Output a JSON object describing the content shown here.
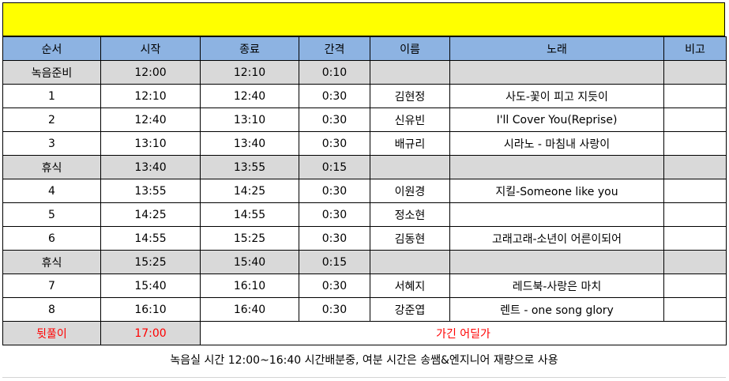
{
  "headers": [
    "순서",
    "시작",
    "종료",
    "간격",
    "이름",
    "노래",
    "비고"
  ],
  "rows": [
    {
      "type": "gray",
      "order": "녹음준비",
      "start": "12:00",
      "end": "12:10",
      "gap": "0:10",
      "name": "",
      "song": "",
      "note": ""
    },
    {
      "type": "normal",
      "order": "1",
      "start": "12:10",
      "end": "12:40",
      "gap": "0:30",
      "name": "김현정",
      "song": "사도-꽃이 피고 지듯이",
      "note": ""
    },
    {
      "type": "normal",
      "order": "2",
      "start": "12:40",
      "end": "13:10",
      "gap": "0:30",
      "name": "신유빈",
      "song": "I'll Cover You(Reprise)",
      "note": ""
    },
    {
      "type": "normal",
      "order": "3",
      "start": "13:10",
      "end": "13:40",
      "gap": "0:30",
      "name": "배규리",
      "song": "시라노 - 마침내 사랑이",
      "note": ""
    },
    {
      "type": "gray",
      "order": "휴식",
      "start": "13:40",
      "end": "13:55",
      "gap": "0:15",
      "name": "",
      "song": "",
      "note": ""
    },
    {
      "type": "normal",
      "order": "4",
      "start": "13:55",
      "end": "14:25",
      "gap": "0:30",
      "name": "이원경",
      "song": "지킬-Someone like you",
      "note": ""
    },
    {
      "type": "normal",
      "order": "5",
      "start": "14:25",
      "end": "14:55",
      "gap": "0:30",
      "name": "정소현",
      "song": "",
      "note": ""
    },
    {
      "type": "normal",
      "order": "6",
      "start": "14:55",
      "end": "15:25",
      "gap": "0:30",
      "name": "김동현",
      "song": "고래고래-소년이 어른이되어",
      "note": ""
    },
    {
      "type": "gray",
      "order": "휴식",
      "start": "15:25",
      "end": "15:40",
      "gap": "0:15",
      "name": "",
      "song": "",
      "note": ""
    },
    {
      "type": "normal",
      "order": "7",
      "start": "15:40",
      "end": "16:10",
      "gap": "0:30",
      "name": "서혜지",
      "song": "레드북-사랑은 마치",
      "note": ""
    },
    {
      "type": "normal",
      "order": "8",
      "start": "16:10",
      "end": "16:40",
      "gap": "0:30",
      "name": "강준엽",
      "song": "렌트 - one song glory",
      "note": ""
    }
  ],
  "final_row": {
    "order": "뒷풀이",
    "start": "17:00",
    "text": "가긴 어딜가"
  },
  "footnote": "녹음실 시간 12:00~16:40 시간배분중, 여분 시간은 송쌤&엔지니어 재량으로 사용",
  "colors": {
    "banner": "#ffff00",
    "header": "#8db3e2",
    "gray_row": "#d9d9d9",
    "final_text": "#ff0000"
  }
}
